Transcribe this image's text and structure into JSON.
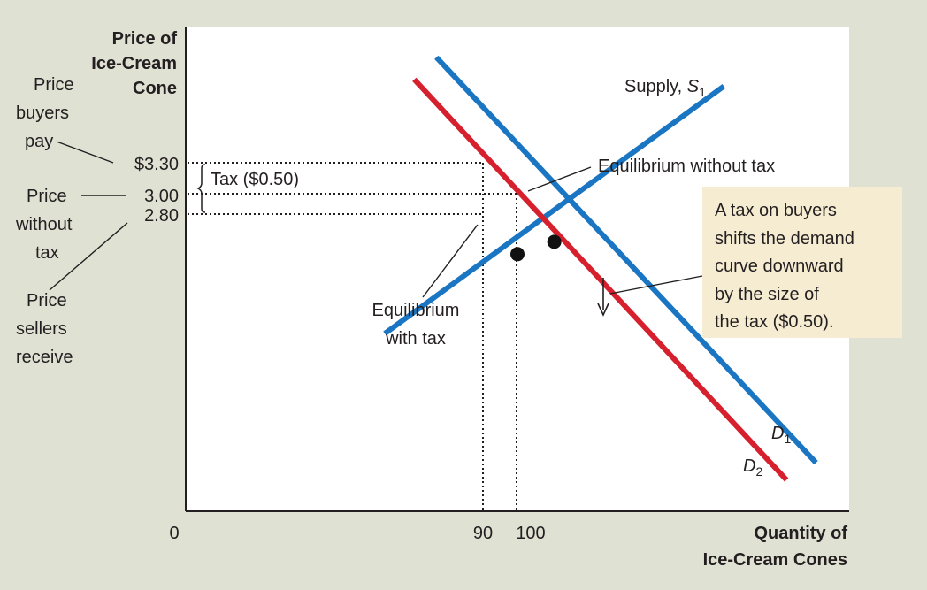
{
  "chart_data": {
    "type": "line",
    "y_axis_title": [
      "Price of",
      "Ice-Cream",
      "Cone"
    ],
    "x_axis_title": [
      "Quantity of",
      "Ice-Cream Cones"
    ],
    "origin_label": "0",
    "x_ticks": [
      {
        "value": 90,
        "label": "90"
      },
      {
        "value": 100,
        "label": "100"
      }
    ],
    "y_ticks": [
      {
        "value": 3.3,
        "label": "$3.30"
      },
      {
        "value": 3.0,
        "label": "3.00"
      },
      {
        "value": 2.8,
        "label": "2.80"
      }
    ],
    "series": [
      {
        "name": "Supply, S1",
        "label_main": "Supply, ",
        "label_sub": "1",
        "label_letter": "S",
        "color": "#1a76c2",
        "points": [
          {
            "x": 54,
            "y": 1.51
          },
          {
            "x": 146,
            "y": 5.53
          }
        ]
      },
      {
        "name": "D1",
        "label_letter": "D",
        "label_sub": "1",
        "color": "#1a76c2",
        "points": [
          {
            "x": 68,
            "y": 6.0
          },
          {
            "x": 171,
            "y": -0.59
          }
        ]
      },
      {
        "name": "D2",
        "label_letter": "D",
        "label_sub": "2",
        "color": "#d6202e",
        "points": [
          {
            "x": 62,
            "y": 5.64
          },
          {
            "x": 163,
            "y": -0.87
          }
        ]
      }
    ],
    "points": [
      {
        "name": "equilibrium-without-tax",
        "x": 100,
        "y": 3.0,
        "label": "Equilibrium without tax"
      },
      {
        "name": "equilibrium-with-tax",
        "x": 90,
        "y": 2.8,
        "label_lines": [
          "Equilibrium",
          "with tax"
        ]
      }
    ],
    "annotations": {
      "tax_brace": "Tax ($0.50)",
      "price_buyers_pay": [
        "Price",
        "buyers",
        "pay"
      ],
      "price_without_tax": [
        "Price",
        "without",
        "tax"
      ],
      "price_sellers_receive": [
        "Price",
        "sellers",
        "receive"
      ],
      "note_box": [
        "A tax on buyers",
        "shifts the demand",
        "curve downward",
        "by the size of",
        "the tax ($0.50)."
      ],
      "note_box_bg": "#f6ecd2"
    },
    "xlim": [
      0,
      180
    ],
    "ylim": [
      -1.38,
      6.5
    ],
    "grid": false,
    "legend": "none"
  }
}
